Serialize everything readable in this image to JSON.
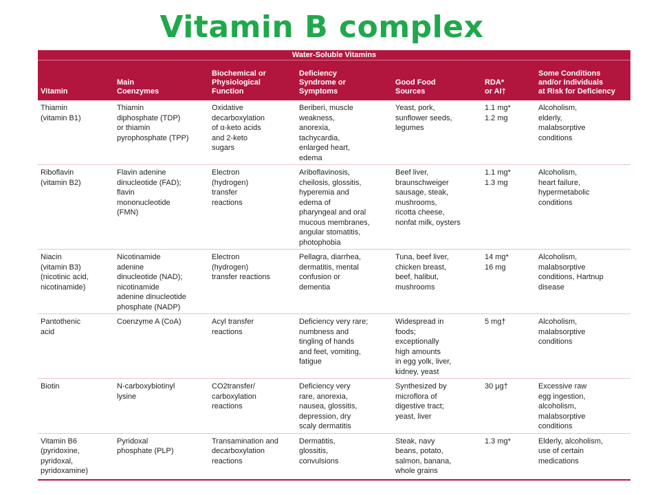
{
  "title": "Vitamin B complex",
  "table": {
    "caption": "Water-Soluble Vitamins",
    "headers": [
      "Vitamin",
      "Main\nCoenzymes",
      "Biochemical or\nPhysiological\nFunction",
      "Deficiency\nSyndrome or\nSymptoms",
      "Good Food\nSources",
      "RDA*\nor AI†",
      "Some Conditions\nand/or Individuals\nat Risk for Deficiency"
    ],
    "rows": [
      [
        "Thiamin\n(vitamin B1)",
        "Thiamin\ndiphosphate (TDP)\nor thiamin\npyrophosphate (TPP)",
        "Oxidative\ndecarboxylation\nof α-keto acids\nand 2-keto\nsugars",
        "Beriberi, muscle\nweakness,\nanorexia,\ntachycardia,\nenlarged heart,\nedema",
        "Yeast, pork,\nsunflower seeds,\nlegumes",
        "1.1 mg*\n1.2 mg",
        "Alcoholism,\nelderly,\nmalabsorptive\nconditions"
      ],
      [
        "Riboflavin\n(vitamin B2)",
        "Flavin adenine\ndinucleotide (FAD);\nflavin\nmononucleotide\n(FMN)",
        "Electron\n(hydrogen)\ntransfer\nreactions",
        "Ariboflavinosis,\ncheilosis, glossitis,\nhyperemia and\nedema of\npharyngeal and oral\nmucous membranes,\nangular stomatitis,\nphotophobia",
        "Beef liver,\nbraunschweiger\nsausage, steak,\nmushrooms,\nricotta cheese,\nnonfat milk, oysters",
        "1.1 mg*\n1.3 mg",
        "Alcoholism,\nheart failure,\nhypermetabolic\nconditions"
      ],
      [
        "Niacin\n(vitamin B3)\n(nicotinic acid,\nnicotinamide)",
        "Nicotinamide\nadenine\ndinucleotide (NAD);\nnicotinamide\nadenine dinucleotide\nphosphate (NADP)",
        "Electron\n(hydrogen)\ntransfer reactions",
        "Pellagra, diarrhea,\ndermatitis, mental\nconfusion or\ndementia",
        "Tuna, beef liver,\nchicken breast,\nbeef, halibut,\nmushrooms",
        "14 mg*\n16 mg",
        "Alcoholism,\nmalabsorptive\nconditions, Hartnup\ndisease"
      ],
      [
        "Pantothenic\nacid",
        "Coenzyme A (CoA)",
        "Acyl transfer\nreactions",
        "Deficiency very rare;\nnumbness and\ntingling of hands\nand feet, vomiting,\nfatigue",
        "Widespread in\nfoods;\nexceptionally\nhigh amounts\nin egg yolk, liver,\nkidney, yeast",
        "5 mg†",
        "Alcoholism,\nmalabsorptive\nconditions"
      ],
      [
        "Biotin",
        "N-carboxybiotinyl\nlysine",
        "CO2transfer/\ncarboxylation\nreactions",
        "Deficiency very\n rare, anorexia,\nnausea, glossitis,\ndepression, dry\nscaly dermatitis",
        "Synthesized by\nmicroflora of\ndigestive tract;\nyeast, liver",
        "30 μg†",
        "Excessive raw\negg ingestion,\nalcoholism,\nmalabsorptive\nconditions"
      ],
      [
        "Vitamin B6\n(pyridoxine,\npyridoxal,\npyridoxamine)",
        "Pyridoxal\nphosphate (PLP)",
        "Transamination and\ndecarboxylation\nreactions",
        "Dermatitis,\nglossitis,\nconvulsions",
        "Steak, navy\nbeans, potato,\nsalmon, banana,\nwhole grains",
        "1.3 mg*",
        "Elderly, alcoholism,\nuse of certain\nmedications"
      ]
    ]
  }
}
